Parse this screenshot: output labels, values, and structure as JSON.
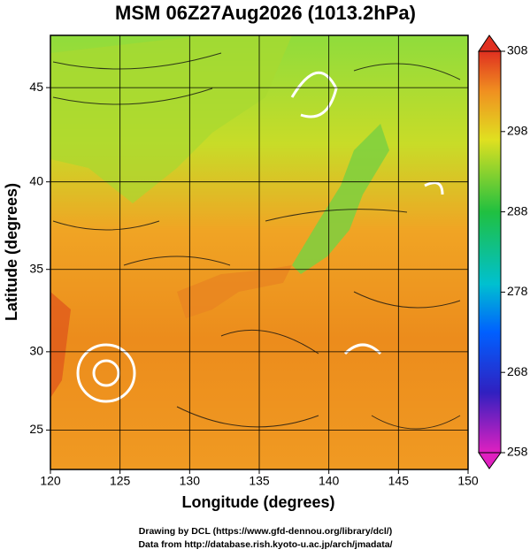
{
  "title": "MSM 06Z27Aug2026 (1013.2hPa)",
  "x_axis": {
    "label": "Longitude (degrees)",
    "lim": [
      120,
      150
    ],
    "ticks": [
      120,
      125,
      130,
      135,
      140,
      145,
      150
    ]
  },
  "y_axis": {
    "label": "Latitude  (degrees)",
    "lim": [
      22.4,
      47.6
    ],
    "ticks": [
      25,
      30,
      35,
      40,
      45
    ]
  },
  "colorbar": {
    "lim": [
      258,
      308
    ],
    "ticks": [
      258,
      268,
      278,
      288,
      298,
      308
    ]
  },
  "footer": [
    "Drawing by DCL (https://www.gfd-dennou.org/library/dcl/)",
    "Data from http://database.rish.kyoto-u.ac.jp/arch/jmadata/"
  ]
}
